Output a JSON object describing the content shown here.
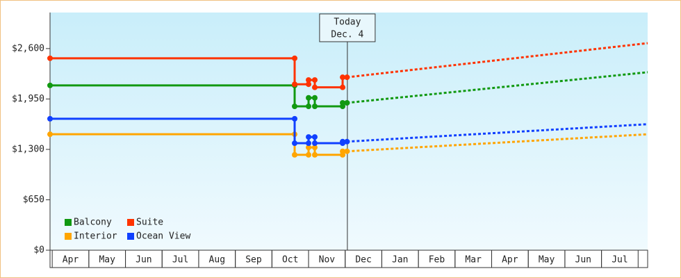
{
  "chart_data": {
    "type": "step-line",
    "xlim": [
      -0.06,
      16.26
    ],
    "ylim": [
      0,
      3065
    ],
    "xticks": [
      {
        "value": 0.5,
        "label": "Apr"
      },
      {
        "value": 1.5,
        "label": "May"
      },
      {
        "value": 2.5,
        "label": "Jun"
      },
      {
        "value": 3.5,
        "label": "Jul"
      },
      {
        "value": 4.5,
        "label": "Aug"
      },
      {
        "value": 5.5,
        "label": "Sep"
      },
      {
        "value": 6.5,
        "label": "Oct"
      },
      {
        "value": 7.5,
        "label": "Nov"
      },
      {
        "value": 8.5,
        "label": "Dec"
      },
      {
        "value": 9.5,
        "label": "Jan"
      },
      {
        "value": 10.5,
        "label": "Feb"
      },
      {
        "value": 11.5,
        "label": "Mar"
      },
      {
        "value": 12.5,
        "label": "Apr"
      },
      {
        "value": 13.5,
        "label": "May"
      },
      {
        "value": 14.5,
        "label": "Jun"
      },
      {
        "value": 15.5,
        "label": "Jul"
      }
    ],
    "yticks": [
      {
        "value": 0,
        "label": "$0"
      },
      {
        "value": 650,
        "label": "$650"
      },
      {
        "value": 1300,
        "label": "$1,300"
      },
      {
        "value": 1950,
        "label": "$1,950"
      },
      {
        "value": 2600,
        "label": "$2,600"
      }
    ],
    "annotation": {
      "x": 8.06,
      "text": "Today",
      "date": "Dec. 4"
    },
    "legend": "bottom-left",
    "series": [
      {
        "name": "Balcony",
        "color": "#119911",
        "history": {
          "x": [
            -0.06,
            6.62,
            6.62,
            7.0,
            7.0,
            7.17,
            7.17,
            7.93,
            7.93,
            8.05
          ],
          "values": [
            2125,
            2125,
            1855,
            1855,
            1965,
            1965,
            1855,
            1855,
            1900,
            1900
          ]
        },
        "forecast": {
          "x": [
            8.05,
            16.26
          ],
          "values": [
            1900,
            2295
          ]
        }
      },
      {
        "name": "Suite",
        "color": "#ff3300",
        "history": {
          "x": [
            -0.06,
            6.62,
            6.62,
            7.0,
            7.0,
            7.17,
            7.17,
            7.93,
            7.93,
            8.05
          ],
          "values": [
            2475,
            2475,
            2140,
            2140,
            2195,
            2195,
            2100,
            2100,
            2230,
            2230
          ]
        },
        "forecast": {
          "x": [
            8.05,
            16.26
          ],
          "values": [
            2230,
            2670
          ]
        }
      },
      {
        "name": "Interior",
        "color": "#ffa500",
        "history": {
          "x": [
            -0.06,
            6.62,
            6.62,
            7.0,
            7.0,
            7.17,
            7.17,
            7.93,
            7.93,
            8.05
          ],
          "values": [
            1495,
            1495,
            1230,
            1230,
            1325,
            1325,
            1230,
            1230,
            1275,
            1275
          ]
        },
        "forecast": {
          "x": [
            8.05,
            16.26
          ],
          "values": [
            1275,
            1495
          ]
        }
      },
      {
        "name": "Ocean View",
        "color": "#1040ff",
        "history": {
          "x": [
            -0.06,
            6.62,
            6.62,
            7.0,
            7.0,
            7.17,
            7.17,
            7.93,
            7.93,
            8.05
          ],
          "values": [
            1695,
            1695,
            1380,
            1380,
            1460,
            1460,
            1380,
            1380,
            1400,
            1400
          ]
        },
        "forecast": {
          "x": [
            8.05,
            16.26
          ],
          "values": [
            1400,
            1625
          ]
        }
      }
    ]
  }
}
